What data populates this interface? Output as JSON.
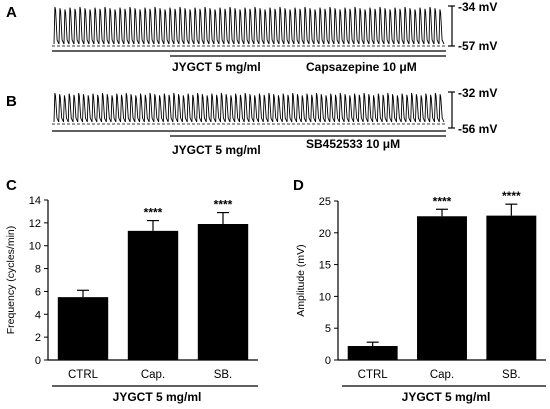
{
  "panel_labels": [
    "A",
    "B",
    "C",
    "D"
  ],
  "traces": [
    {
      "id": "A",
      "cycles": 78,
      "top_label": "-34 mV",
      "bottom_label": "-57 mV",
      "drug_label": "JYGCT 5 mg/ml",
      "blocker_label": "Capsazepine 10 μM"
    },
    {
      "id": "B",
      "cycles": 82,
      "top_label": "-32 mV",
      "bottom_label": "-56 mV",
      "drug_label": "JYGCT 5 mg/ml",
      "blocker_label": "SB452533 10 μM"
    }
  ],
  "chart_data": [
    {
      "id": "C",
      "type": "bar",
      "categories": [
        "CTRL",
        "Cap.",
        "SB."
      ],
      "values": [
        5.5,
        11.3,
        11.9
      ],
      "errors": [
        0.6,
        0.9,
        1.0
      ],
      "significance": [
        "",
        "****",
        "****"
      ],
      "ylabel": "Frequency (cycles/min)",
      "xlabel": "JYGCT 5 mg/ml",
      "ylim": [
        0,
        14
      ],
      "yticks": [
        0,
        2,
        4,
        6,
        8,
        10,
        12,
        14
      ],
      "bar_color": "#000000"
    },
    {
      "id": "D",
      "type": "bar",
      "categories": [
        "CTRL",
        "Cap.",
        "SB."
      ],
      "values": [
        2.2,
        22.6,
        22.7
      ],
      "errors": [
        0.6,
        1.1,
        1.8
      ],
      "significance": [
        "",
        "****",
        "****"
      ],
      "ylabel": "Amplitude (mV)",
      "xlabel": "JYGCT 5 mg/ml",
      "ylim": [
        0,
        25
      ],
      "yticks": [
        0,
        5,
        10,
        15,
        20,
        25
      ],
      "bar_color": "#000000"
    }
  ]
}
